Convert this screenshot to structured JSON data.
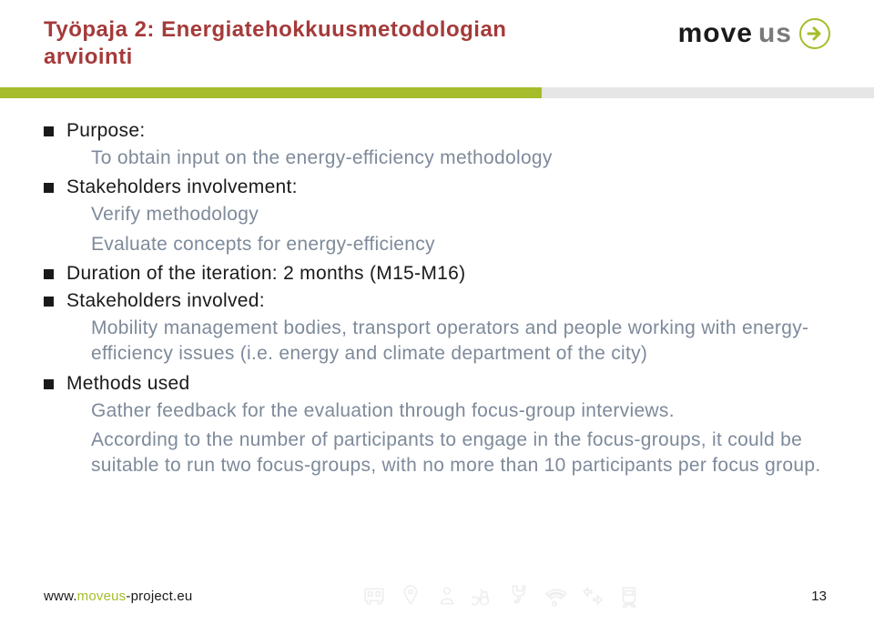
{
  "title": {
    "text": "Työpaja 2: Energiatehokkuusmetodologian arviointi",
    "color": "#a53a3a",
    "fontsize": 24,
    "weight": "700"
  },
  "logo": {
    "text_black": "move",
    "text_grey": "us",
    "arrow_color": "#a7bc2a",
    "text_color_black": "#1a1a1a",
    "text_color_grey": "#7a7a7a",
    "fontsize": 30
  },
  "accent_bar": {
    "active_color": "#a7bc2a",
    "inactive_color": "#e6e6e6",
    "split_percent": 62
  },
  "bullets": {
    "heading_color": "#1a1a1a",
    "heading_size": 21,
    "body_color": "#7e8a9a",
    "body_size": 21,
    "items": [
      {
        "label": "Purpose:",
        "body": [
          "To obtain input on the energy-efficiency methodology"
        ]
      },
      {
        "label": "Stakeholders involvement:",
        "body": [
          "Verify methodology",
          "Evaluate concepts for energy-efficiency"
        ]
      },
      {
        "label": "Duration of the iteration: 2 months (M15-M16)",
        "body": []
      },
      {
        "label": "Stakeholders involved:",
        "body": [
          "Mobility management bodies, transport operators and people working with energy-efficiency issues (i.e. energy and climate department of the city)"
        ]
      },
      {
        "label": "Methods used",
        "body": [
          "Gather feedback for the evaluation through focus-group interviews.",
          "According to the number of participants to engage in the focus-groups, it could be suitable to run two focus-groups, with no more than 10 participants per focus group."
        ]
      }
    ]
  },
  "footer": {
    "url_prefix": "www.",
    "url_highlight": "moveus",
    "url_suffix": "-project.eu",
    "highlight_color": "#a7bc2a",
    "text_color": "#1a1a1a",
    "page_number": "13",
    "icon_color": "#bfbfbf"
  }
}
